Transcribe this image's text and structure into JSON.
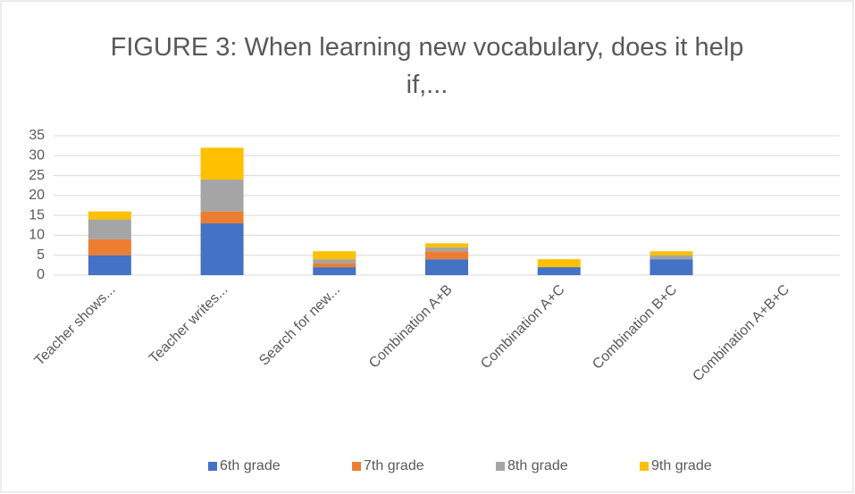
{
  "chart_data": {
    "type": "stacked_bar",
    "title": "FIGURE 3: When learning new vocabulary, does it help if,...",
    "categories": [
      "Teacher shows...",
      "Teacher writes...",
      "Search for new...",
      "Combination A+B",
      "Combination A+C",
      "Combination B+C",
      "Combination A+B+C"
    ],
    "series": [
      {
        "name": "6th grade",
        "color": "#4472c4",
        "values": [
          5,
          13,
          2,
          4,
          2,
          4,
          0
        ]
      },
      {
        "name": "7th grade",
        "color": "#ed7d31",
        "values": [
          4,
          3,
          1,
          2,
          0,
          0,
          0
        ]
      },
      {
        "name": "8th grade",
        "color": "#a5a5a5",
        "values": [
          5,
          8,
          1,
          1,
          0,
          1,
          0
        ]
      },
      {
        "name": "9th grade",
        "color": "#ffc000",
        "values": [
          2,
          8,
          2,
          1,
          2,
          1,
          0
        ]
      }
    ],
    "ylim": [
      0,
      35
    ],
    "yticks": [
      0,
      5,
      10,
      15,
      20,
      25,
      30,
      35
    ],
    "grid": true,
    "legend": "bottom"
  }
}
